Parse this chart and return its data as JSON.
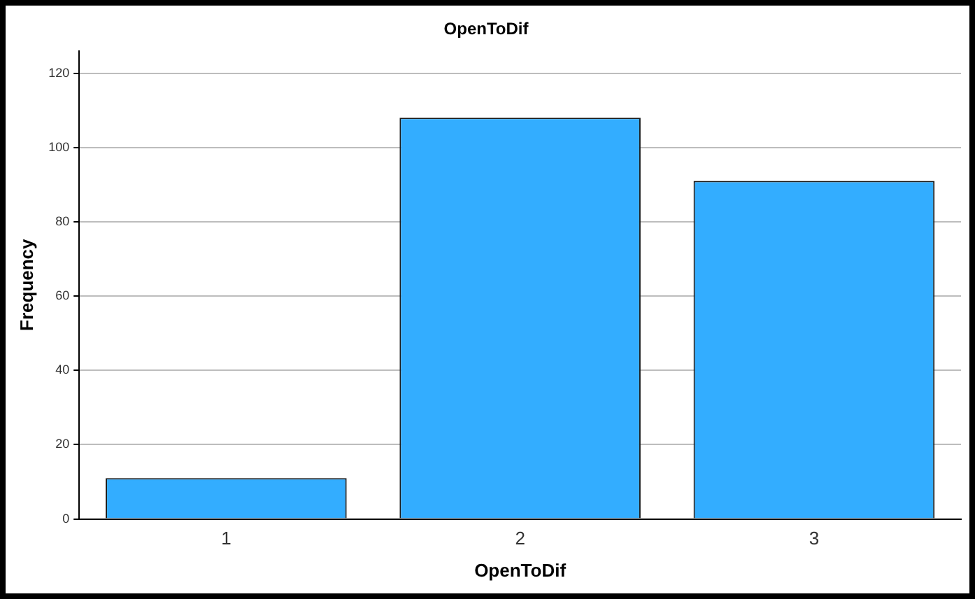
{
  "chart_data": {
    "type": "bar",
    "title": "OpenToDif",
    "xlabel": "OpenToDif",
    "ylabel": "Frequency",
    "categories": [
      "1",
      "2",
      "3"
    ],
    "values": [
      11,
      108,
      91
    ],
    "color": "#33adff",
    "ylim": [
      0,
      126
    ],
    "yticks": [
      0,
      20,
      40,
      60,
      80,
      100,
      120
    ],
    "grid": "y",
    "legend": false
  }
}
